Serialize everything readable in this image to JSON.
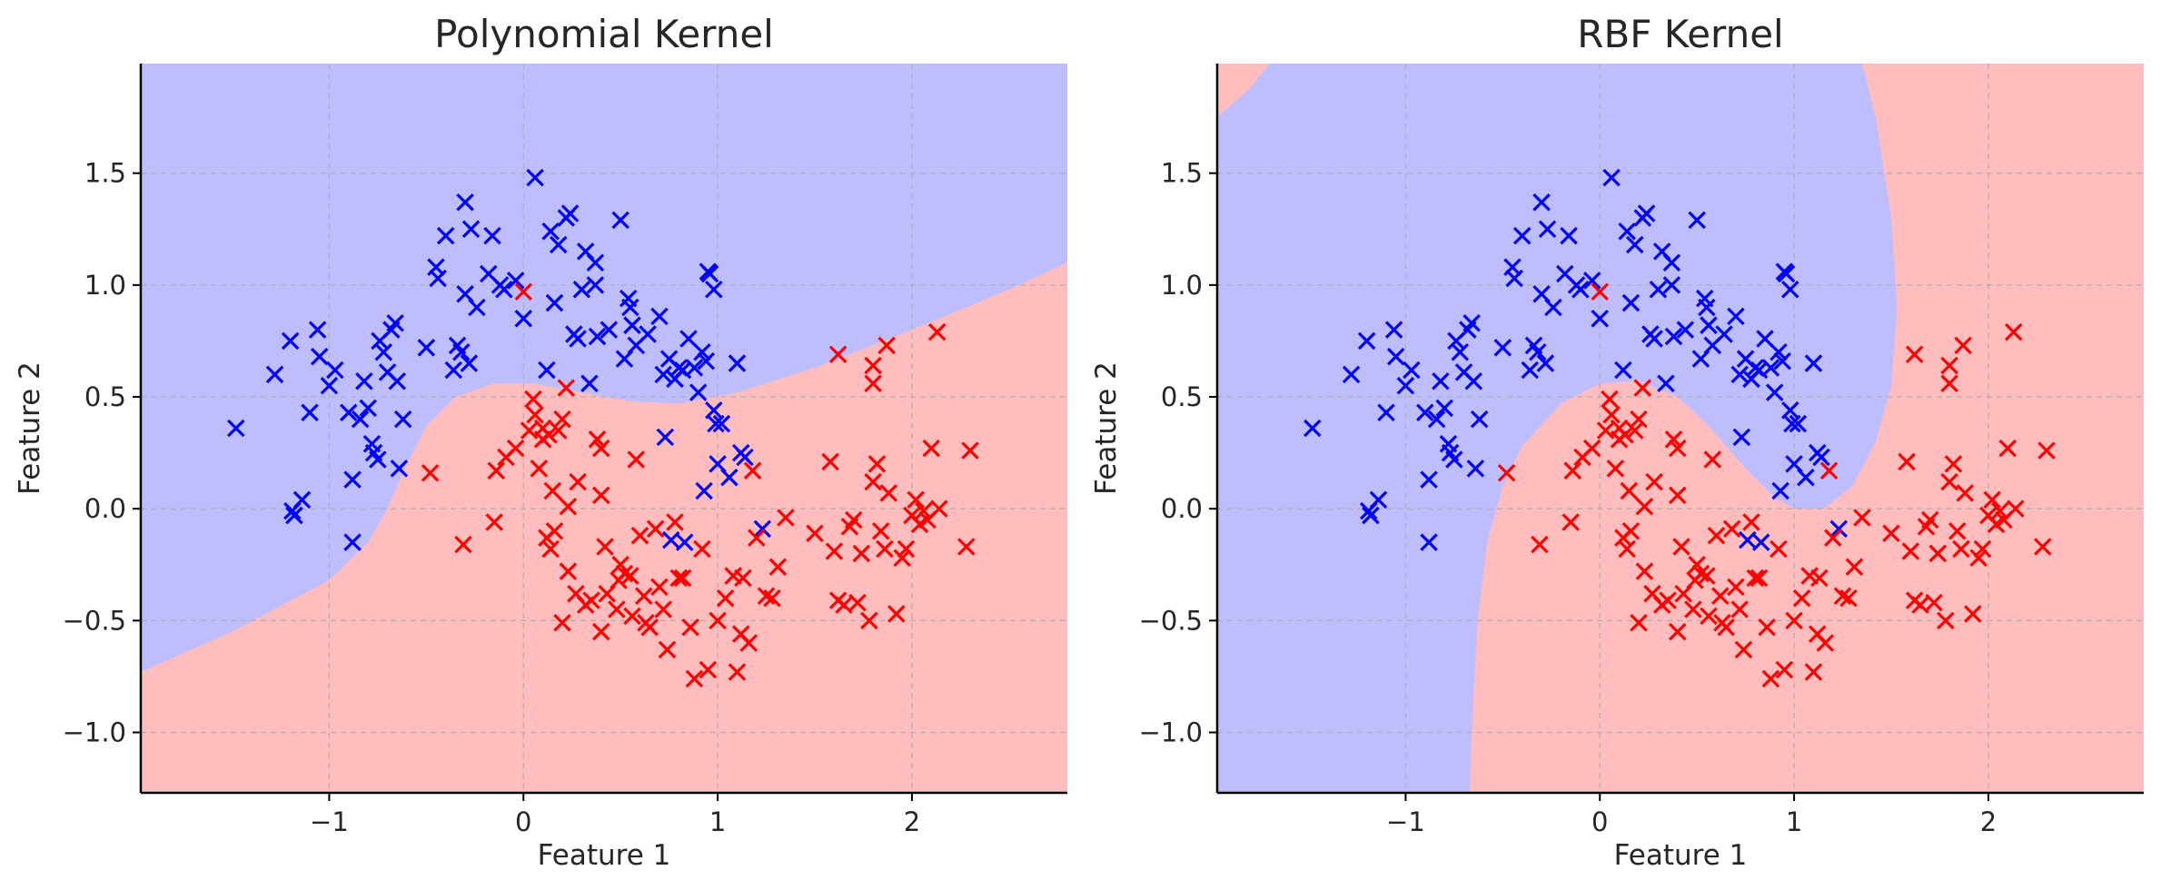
{
  "colors": {
    "class0_region": "#bdbdff",
    "class1_region": "#ffbdbd",
    "class0_marker": "#0000ff",
    "class1_marker": "#ff0000"
  },
  "chart_data": [
    {
      "type": "scatter",
      "title": "Polynomial Kernel",
      "xlabel": "Feature 1",
      "ylabel": "Feature 2",
      "xlim": [
        -1.97,
        2.8
      ],
      "ylim": [
        -1.27,
        1.99
      ],
      "xticks": [
        -1,
        0,
        1,
        2
      ],
      "xtick_labels": [
        "−1",
        "0",
        "1",
        "2"
      ],
      "yticks": [
        -1.0,
        -0.5,
        0.0,
        0.5,
        1.0,
        1.5
      ],
      "ytick_labels": [
        "−1.0",
        "−0.5",
        "0.0",
        "0.5",
        "1.0",
        "1.5"
      ],
      "grid": true,
      "marker": "x",
      "decision_boundary": [
        [
          -1.97,
          -0.73
        ],
        [
          -1.5,
          -0.55
        ],
        [
          -1.0,
          -0.32
        ],
        [
          -0.8,
          -0.15
        ],
        [
          -0.7,
          0.0
        ],
        [
          -0.6,
          0.2
        ],
        [
          -0.5,
          0.37
        ],
        [
          -0.35,
          0.5
        ],
        [
          -0.15,
          0.56
        ],
        [
          0.05,
          0.56
        ],
        [
          0.3,
          0.52
        ],
        [
          0.55,
          0.48
        ],
        [
          0.8,
          0.47
        ],
        [
          1.1,
          0.52
        ],
        [
          1.5,
          0.63
        ],
        [
          2.0,
          0.8
        ],
        [
          2.5,
          0.98
        ],
        [
          2.8,
          1.1
        ]
      ],
      "region_above": "class 0",
      "region_below": "class 1"
    },
    {
      "type": "scatter",
      "title": "RBF Kernel",
      "xlabel": "Feature 1",
      "ylabel": "Feature 2",
      "xlim": [
        -1.97,
        2.8
      ],
      "ylim": [
        -1.27,
        1.99
      ],
      "xticks": [
        -1,
        0,
        1,
        2
      ],
      "xtick_labels": [
        "−1",
        "0",
        "1",
        "2"
      ],
      "yticks": [
        -1.0,
        -0.5,
        0.0,
        0.5,
        1.0,
        1.5
      ],
      "ytick_labels": [
        "−1.0",
        "−0.5",
        "0.0",
        "0.5",
        "1.0",
        "1.5"
      ],
      "grid": true,
      "marker": "x",
      "class0_region_outline": [
        [
          -1.97,
          1.75
        ],
        [
          -1.8,
          1.88
        ],
        [
          -1.7,
          1.99
        ],
        [
          1.35,
          1.99
        ],
        [
          1.42,
          1.75
        ],
        [
          1.5,
          1.3
        ],
        [
          1.53,
          0.9
        ],
        [
          1.5,
          0.55
        ],
        [
          1.42,
          0.3
        ],
        [
          1.3,
          0.1
        ],
        [
          1.15,
          0.0
        ],
        [
          1.0,
          0.0
        ],
        [
          0.9,
          0.05
        ],
        [
          0.75,
          0.18
        ],
        [
          0.55,
          0.38
        ],
        [
          0.4,
          0.5
        ],
        [
          0.2,
          0.57
        ],
        [
          0.0,
          0.56
        ],
        [
          -0.2,
          0.47
        ],
        [
          -0.4,
          0.28
        ],
        [
          -0.5,
          0.1
        ],
        [
          -0.58,
          -0.15
        ],
        [
          -0.63,
          -0.5
        ],
        [
          -0.66,
          -1.0
        ],
        [
          -0.67,
          -1.27
        ],
        [
          -1.97,
          -1.27
        ]
      ]
    }
  ],
  "class0_points": [
    [
      -1.48,
      0.36
    ],
    [
      -1.28,
      0.6
    ],
    [
      -1.19,
      -0.01
    ],
    [
      -1.18,
      -0.03
    ],
    [
      -1.14,
      0.04
    ],
    [
      -1.1,
      0.43
    ],
    [
      -1.06,
      0.8
    ],
    [
      -1.05,
      0.68
    ],
    [
      -1.0,
      0.55
    ],
    [
      -0.97,
      0.62
    ],
    [
      -0.9,
      0.43
    ],
    [
      -0.88,
      0.13
    ],
    [
      -0.88,
      -0.15
    ],
    [
      -0.84,
      0.4
    ],
    [
      -0.82,
      0.57
    ],
    [
      -0.8,
      0.45
    ],
    [
      -0.78,
      0.29
    ],
    [
      -0.77,
      0.25
    ],
    [
      -0.75,
      0.22
    ],
    [
      -0.74,
      0.75
    ],
    [
      -0.72,
      0.7
    ],
    [
      -0.7,
      0.61
    ],
    [
      -0.68,
      0.8
    ],
    [
      -0.66,
      0.83
    ],
    [
      -0.65,
      0.57
    ],
    [
      -0.64,
      0.18
    ],
    [
      -0.62,
      0.4
    ],
    [
      -1.2,
      0.75
    ],
    [
      -0.5,
      0.72
    ],
    [
      -0.45,
      1.08
    ],
    [
      -0.44,
      1.03
    ],
    [
      -0.4,
      1.22
    ],
    [
      -0.36,
      0.62
    ],
    [
      -0.34,
      0.73
    ],
    [
      -0.32,
      0.7
    ],
    [
      -0.3,
      1.37
    ],
    [
      -0.3,
      0.96
    ],
    [
      -0.28,
      0.65
    ],
    [
      -0.27,
      1.25
    ],
    [
      -0.24,
      0.9
    ],
    [
      -0.18,
      1.05
    ],
    [
      -0.16,
      1.22
    ],
    [
      -0.12,
      1.0
    ],
    [
      -0.1,
      0.98
    ],
    [
      -0.04,
      1.02
    ],
    [
      0.0,
      0.85
    ],
    [
      0.06,
      1.48
    ],
    [
      0.12,
      0.62
    ],
    [
      0.14,
      1.24
    ],
    [
      0.16,
      0.92
    ],
    [
      0.18,
      1.18
    ],
    [
      0.22,
      1.3
    ],
    [
      0.24,
      1.32
    ],
    [
      0.26,
      0.78
    ],
    [
      0.28,
      0.76
    ],
    [
      0.3,
      0.98
    ],
    [
      0.32,
      1.15
    ],
    [
      0.34,
      0.56
    ],
    [
      0.37,
      1.1
    ],
    [
      0.37,
      1.0
    ],
    [
      0.38,
      0.77
    ],
    [
      0.44,
      0.8
    ],
    [
      0.5,
      1.29
    ],
    [
      0.52,
      0.67
    ],
    [
      0.54,
      0.94
    ],
    [
      0.55,
      0.9
    ],
    [
      0.56,
      0.82
    ],
    [
      0.58,
      0.73
    ],
    [
      0.64,
      0.78
    ],
    [
      0.7,
      0.86
    ],
    [
      0.72,
      0.6
    ],
    [
      0.73,
      0.32
    ],
    [
      0.75,
      0.67
    ],
    [
      0.76,
      -0.14
    ],
    [
      0.78,
      0.58
    ],
    [
      0.8,
      0.63
    ],
    [
      0.82,
      0.62
    ],
    [
      0.83,
      -0.15
    ],
    [
      0.85,
      0.76
    ],
    [
      0.88,
      0.63
    ],
    [
      0.9,
      0.52
    ],
    [
      0.92,
      0.7
    ],
    [
      0.93,
      0.08
    ],
    [
      0.94,
      0.66
    ],
    [
      0.95,
      1.06
    ],
    [
      0.96,
      1.05
    ],
    [
      0.98,
      0.98
    ],
    [
      0.98,
      0.44
    ],
    [
      0.99,
      0.38
    ],
    [
      1.0,
      0.2
    ],
    [
      1.02,
      0.38
    ],
    [
      1.06,
      0.14
    ],
    [
      1.1,
      0.65
    ],
    [
      1.12,
      0.25
    ],
    [
      1.14,
      0.23
    ],
    [
      1.23,
      -0.09
    ]
  ],
  "class1_points": [
    [
      0.0,
      0.97
    ],
    [
      -0.48,
      0.16
    ],
    [
      -0.31,
      -0.16
    ],
    [
      -0.15,
      -0.06
    ],
    [
      -0.14,
      0.17
    ],
    [
      -0.09,
      0.23
    ],
    [
      -0.04,
      0.27
    ],
    [
      0.03,
      0.35
    ],
    [
      0.05,
      0.49
    ],
    [
      0.06,
      0.42
    ],
    [
      0.08,
      0.18
    ],
    [
      0.1,
      0.36
    ],
    [
      0.1,
      0.31
    ],
    [
      0.12,
      -0.13
    ],
    [
      0.13,
      0.33
    ],
    [
      0.14,
      -0.18
    ],
    [
      0.15,
      0.08
    ],
    [
      0.16,
      -0.1
    ],
    [
      0.18,
      0.35
    ],
    [
      0.2,
      0.4
    ],
    [
      0.2,
      -0.51
    ],
    [
      0.22,
      0.54
    ],
    [
      0.23,
      0.01
    ],
    [
      0.23,
      -0.28
    ],
    [
      0.27,
      -0.38
    ],
    [
      0.28,
      0.12
    ],
    [
      0.32,
      -0.43
    ],
    [
      0.35,
      -0.41
    ],
    [
      0.38,
      0.31
    ],
    [
      0.4,
      0.27
    ],
    [
      0.4,
      0.06
    ],
    [
      0.4,
      -0.55
    ],
    [
      0.42,
      -0.17
    ],
    [
      0.43,
      -0.38
    ],
    [
      0.48,
      -0.45
    ],
    [
      0.49,
      -0.32
    ],
    [
      0.5,
      -0.25
    ],
    [
      0.52,
      -0.29
    ],
    [
      0.55,
      -0.3
    ],
    [
      0.56,
      -0.48
    ],
    [
      0.58,
      0.22
    ],
    [
      0.6,
      -0.12
    ],
    [
      0.62,
      -0.39
    ],
    [
      0.63,
      -0.51
    ],
    [
      0.65,
      -0.53
    ],
    [
      0.68,
      -0.09
    ],
    [
      0.7,
      -0.35
    ],
    [
      0.72,
      -0.45
    ],
    [
      0.74,
      -0.63
    ],
    [
      0.78,
      -0.06
    ],
    [
      0.8,
      -0.31
    ],
    [
      0.82,
      -0.31
    ],
    [
      0.86,
      -0.53
    ],
    [
      0.88,
      -0.76
    ],
    [
      0.92,
      -0.18
    ],
    [
      0.95,
      -0.72
    ],
    [
      1.0,
      -0.5
    ],
    [
      1.04,
      -0.4
    ],
    [
      1.08,
      -0.3
    ],
    [
      1.1,
      -0.73
    ],
    [
      1.12,
      -0.56
    ],
    [
      1.13,
      -0.31
    ],
    [
      1.16,
      -0.6
    ],
    [
      1.18,
      0.17
    ],
    [
      1.2,
      -0.13
    ],
    [
      1.25,
      -0.39
    ],
    [
      1.28,
      -0.4
    ],
    [
      1.31,
      -0.26
    ],
    [
      1.35,
      -0.04
    ],
    [
      1.5,
      -0.11
    ],
    [
      1.58,
      0.21
    ],
    [
      1.6,
      -0.19
    ],
    [
      1.62,
      -0.41
    ],
    [
      1.65,
      -0.43
    ],
    [
      1.68,
      -0.08
    ],
    [
      1.7,
      -0.05
    ],
    [
      1.72,
      -0.42
    ],
    [
      1.74,
      -0.2
    ],
    [
      1.78,
      -0.5
    ],
    [
      1.8,
      0.12
    ],
    [
      1.82,
      0.2
    ],
    [
      1.84,
      -0.1
    ],
    [
      1.86,
      -0.18
    ],
    [
      1.88,
      0.07
    ],
    [
      1.92,
      -0.47
    ],
    [
      1.95,
      -0.22
    ],
    [
      1.97,
      -0.18
    ],
    [
      2.0,
      -0.03
    ],
    [
      2.02,
      0.04
    ],
    [
      2.04,
      -0.07
    ],
    [
      2.06,
      -0.01
    ],
    [
      2.08,
      -0.05
    ],
    [
      2.1,
      0.27
    ],
    [
      2.14,
      0.0
    ],
    [
      2.28,
      -0.17
    ],
    [
      2.3,
      0.26
    ],
    [
      1.62,
      0.69
    ],
    [
      1.8,
      0.64
    ],
    [
      1.8,
      0.56
    ],
    [
      1.87,
      0.73
    ],
    [
      2.13,
      0.79
    ]
  ]
}
